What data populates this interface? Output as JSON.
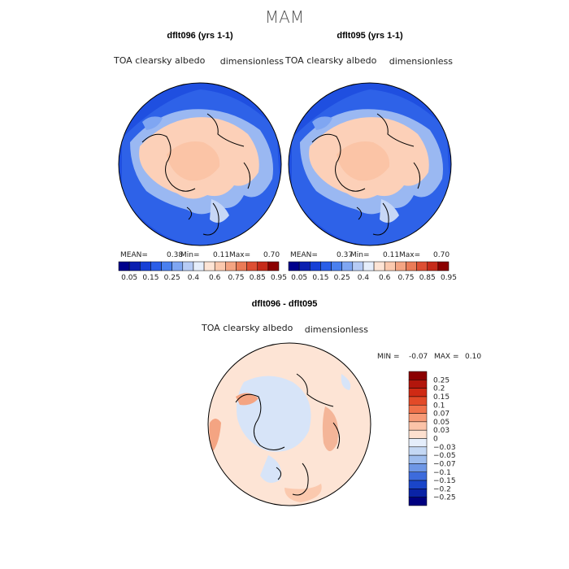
{
  "title": "MAM",
  "colors": {
    "seq_scale": [
      "#00008b",
      "#0a1fb0",
      "#1640d6",
      "#2a5ee8",
      "#4a80ef",
      "#7fa6f2",
      "#b6cbf5",
      "#e6eefb",
      "#fde4d5",
      "#fbc9ae",
      "#f4a482",
      "#ea7b57",
      "#dd4f33",
      "#c52b1a",
      "#8b0000"
    ],
    "diff_scale": [
      "#8b0000",
      "#b2160c",
      "#cf2a14",
      "#e24a28",
      "#f0714a",
      "#f79a76",
      "#fbc3a8",
      "#fde0cf",
      "#e5eefb",
      "#c4d8f4",
      "#9ebdee",
      "#6e97e6",
      "#3d6bdc",
      "#1a45c9",
      "#0a23a6",
      "#000080"
    ],
    "land": "#fcd0b8",
    "ocean": "#1f4fe0"
  },
  "chart_data": [
    {
      "type": "heatmap",
      "panel": "top-left",
      "title": "dflt096 (yrs 1-1)",
      "variable": "TOA clearsky albedo",
      "units": "dimensionless",
      "projection": "north polar stereographic",
      "stats": {
        "mean_label": "MEAN=",
        "mean": "0.38",
        "min_label": "Min=",
        "min": "0.11",
        "max_label": "Max=",
        "max": "0.70"
      },
      "colorbar_labels": [
        "0.05",
        "0.15",
        "0.25",
        "0.4",
        "0.6",
        "0.75",
        "0.85",
        "0.95"
      ]
    },
    {
      "type": "heatmap",
      "panel": "top-right",
      "title": "dflt095 (yrs 1-1)",
      "variable": "TOA clearsky albedo",
      "units": "dimensionless",
      "projection": "north polar stereographic",
      "stats": {
        "mean_label": "MEAN=",
        "mean": "0.37",
        "min_label": "Min=",
        "min": "0.11",
        "max_label": "Max=",
        "max": "0.70"
      },
      "colorbar_labels": [
        "0.05",
        "0.15",
        "0.25",
        "0.4",
        "0.6",
        "0.75",
        "0.85",
        "0.95"
      ]
    },
    {
      "type": "heatmap",
      "panel": "bottom",
      "title": "dflt096 - dflt095",
      "variable": "TOA clearsky albedo",
      "units": "dimensionless",
      "projection": "north polar stereographic",
      "stats": {
        "min_label": "MIN =",
        "min": "-0.07",
        "max_label": "MAX =",
        "max": "0.10"
      },
      "colorbar_labels": [
        "0.25",
        "0.2",
        "0.15",
        "0.1",
        "0.07",
        "0.05",
        "0.03",
        "0",
        "-0.03",
        "-0.05",
        "-0.07",
        "-0.1",
        "-0.15",
        "-0.2",
        "-0.25"
      ]
    }
  ]
}
